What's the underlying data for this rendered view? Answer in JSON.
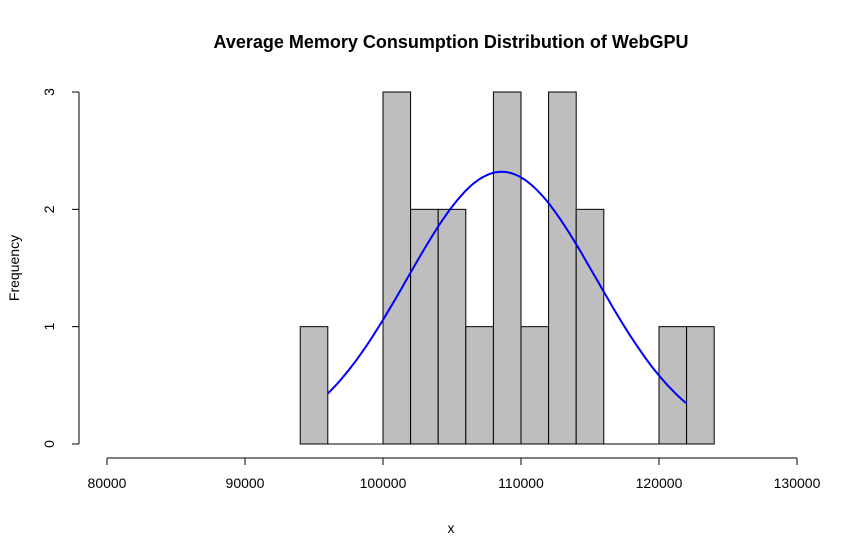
{
  "chart_data": {
    "type": "histogram",
    "title": "Average Memory Consumption Distribution of WebGPU",
    "xlabel": "x",
    "ylabel": "Frequency",
    "xlim": [
      80000,
      130000
    ],
    "ylim": [
      0,
      3
    ],
    "x_ticks": [
      "80000",
      "90000",
      "100000",
      "110000",
      "120000",
      "130000"
    ],
    "y_ticks": [
      "0",
      "1",
      "2",
      "3"
    ],
    "bins": [
      {
        "start": 94000,
        "end": 96000,
        "count": 1
      },
      {
        "start": 96000,
        "end": 98000,
        "count": 0
      },
      {
        "start": 98000,
        "end": 100000,
        "count": 0
      },
      {
        "start": 100000,
        "end": 102000,
        "count": 3
      },
      {
        "start": 102000,
        "end": 104000,
        "count": 2
      },
      {
        "start": 104000,
        "end": 106000,
        "count": 2
      },
      {
        "start": 106000,
        "end": 108000,
        "count": 1
      },
      {
        "start": 108000,
        "end": 110000,
        "count": 3
      },
      {
        "start": 110000,
        "end": 112000,
        "count": 1
      },
      {
        "start": 112000,
        "end": 114000,
        "count": 3
      },
      {
        "start": 114000,
        "end": 116000,
        "count": 2
      },
      {
        "start": 116000,
        "end": 118000,
        "count": 0
      },
      {
        "start": 118000,
        "end": 120000,
        "count": 0
      },
      {
        "start": 120000,
        "end": 122000,
        "count": 1
      },
      {
        "start": 122000,
        "end": 124000,
        "count": 1
      }
    ],
    "density_curve": {
      "x_range": [
        96000,
        122000
      ],
      "mean": 108600,
      "peak": 2.32,
      "end_values": [
        0.43,
        0.34
      ]
    },
    "colors": {
      "bar_fill": "#bebebe",
      "bar_stroke": "#000000",
      "curve": "#0000ff"
    }
  }
}
